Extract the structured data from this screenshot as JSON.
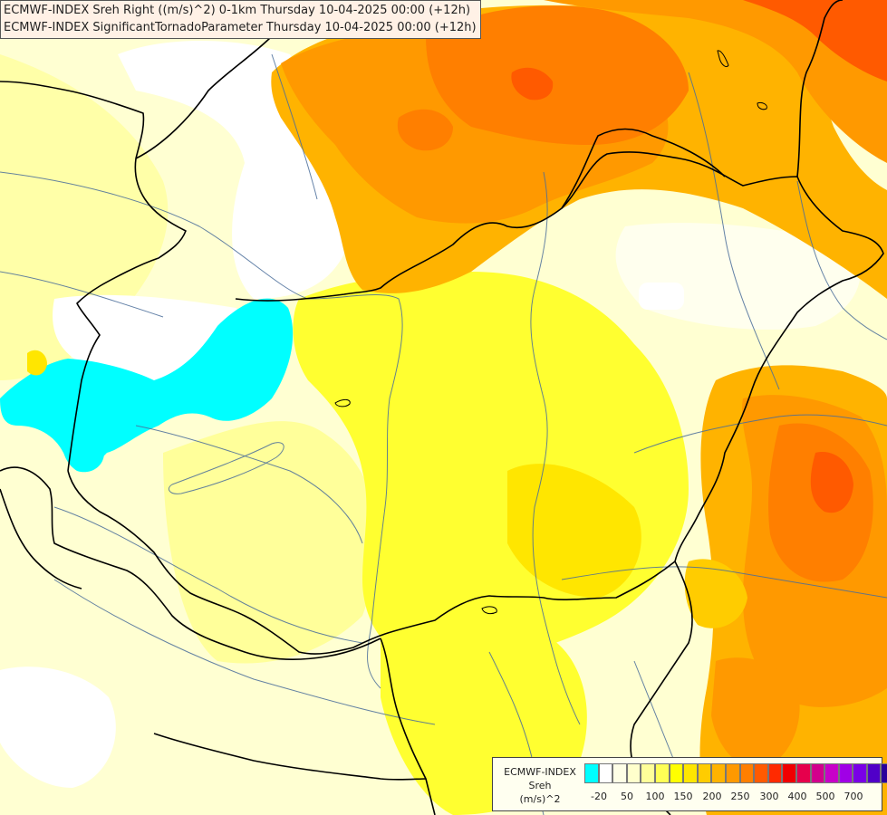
{
  "titles": {
    "line1": "ECMWF-INDEX Sreh Right ((m/s)^2) 0-1km Thursday 10-04-2025 00:00 (+12h)",
    "line2": "ECMWF-INDEX SignificantTornadoParameter Thursday 10-04-2025 00:00 (+12h)"
  },
  "legend": {
    "title_lines": [
      "ECMWF-INDEX",
      "Sreh",
      "(m/s)^2"
    ],
    "colors": [
      "#00ffff",
      "#ffffff",
      "#ffffe6",
      "#ffffcc",
      "#ffff99",
      "#ffff55",
      "#ffff00",
      "#ffe600",
      "#ffcc00",
      "#ffb300",
      "#ff9900",
      "#ff7f00",
      "#ff5a00",
      "#ff2a00",
      "#f00000",
      "#e6004c",
      "#d2008c",
      "#c800c8",
      "#a000e6",
      "#7a00e6",
      "#5000c8",
      "#28009b",
      "#000080"
    ],
    "tick_labels": [
      "-20",
      "50",
      "100",
      "150",
      "200",
      "250",
      "300",
      "400",
      "500",
      "700"
    ]
  },
  "map": {
    "fields": {
      "background": "#ffffd2",
      "light_yellow": "#ffff99",
      "yellow": "#ffff00",
      "gold": "#ffd700",
      "orange_light": "#ffb300",
      "orange": "#ff9900",
      "orange_dark": "#ff7f00",
      "red_orange": "#ff5a00",
      "red": "#f00000",
      "white": "#ffffff",
      "cyan": "#00ffff"
    },
    "border_color": "#000000",
    "river_color": "#4a6d9a"
  }
}
